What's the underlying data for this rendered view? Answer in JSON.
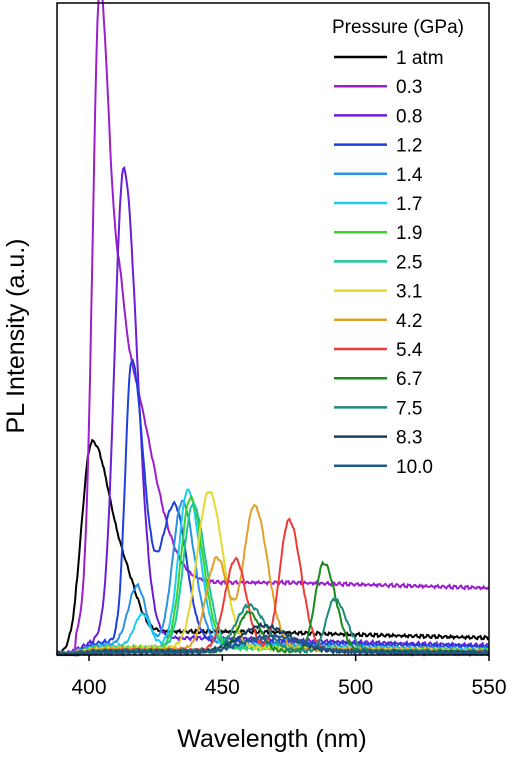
{
  "chart_data": {
    "type": "line",
    "title": "",
    "xlabel": "Wavelength (nm)",
    "ylabel": "PL Intensity (a.u.)",
    "xlim": [
      388,
      550
    ],
    "ylim": [
      0,
      100
    ],
    "xticks": [
      "400",
      "450",
      "500",
      "550"
    ],
    "legend_title": "Pressure (GPa)",
    "legend_position": "top-right",
    "grid": false,
    "series": [
      {
        "name": "1 atm",
        "color": "#000000",
        "peaks": [
          [
            401,
            30,
            3.8,
            7.5
          ],
          [
            415,
            4,
            4,
            4
          ]
        ],
        "tail": [
          3.5,
          460,
          0.012
        ]
      },
      {
        "name": "0.3",
        "color": "#9b1fcc",
        "peaks": [
          [
            404,
            92,
            2.6,
            4.2
          ],
          [
            413,
            34,
            3,
            10
          ]
        ],
        "tail": [
          11,
          476,
          0.0035
        ]
      },
      {
        "name": "0.8",
        "color": "#6a1fd6",
        "peaks": [
          [
            413,
            72,
            3.4,
            5
          ]
        ],
        "tail": [
          2.5,
          450,
          0.02
        ]
      },
      {
        "name": "1.2",
        "color": "#1f3fdd",
        "peaks": [
          [
            416,
            43,
            2.4,
            4.5
          ],
          [
            432,
            21,
            5,
            4.5
          ]
        ],
        "tail": [
          2,
          460,
          0.02
        ]
      },
      {
        "name": "1.4",
        "color": "#2a93e6",
        "peaks": [
          [
            418,
            9,
            3.3,
            3.3
          ],
          [
            435,
            22,
            3.6,
            4.6
          ]
        ],
        "tail": [
          1.5,
          470,
          0.03
        ]
      },
      {
        "name": "1.7",
        "color": "#1ccdf2",
        "peaks": [
          [
            420,
            5,
            3,
            3
          ],
          [
            437,
            24,
            3.4,
            4.6
          ]
        ],
        "tail": [
          1.2,
          470,
          0.03
        ]
      },
      {
        "name": "1.9",
        "color": "#3ad32a",
        "peaks": [
          [
            438,
            23,
            3.5,
            4.7
          ]
        ],
        "tail": [
          1,
          470,
          0.03
        ]
      },
      {
        "name": "2.5",
        "color": "#1fc797",
        "peaks": [
          [
            439,
            22,
            3.6,
            4.8
          ]
        ],
        "tail": [
          1,
          470,
          0.03
        ]
      },
      {
        "name": "3.1",
        "color": "#e5d92f",
        "peaks": [
          [
            445,
            24,
            4.4,
            5.2
          ]
        ],
        "tail": [
          1,
          480,
          0.03
        ]
      },
      {
        "name": "4.2",
        "color": "#e0a02a",
        "peaks": [
          [
            448,
            14,
            4,
            4
          ],
          [
            462,
            22,
            4,
            5
          ]
        ],
        "tail": [
          0.8,
          480,
          0.03
        ]
      },
      {
        "name": "5.4",
        "color": "#f03a3a",
        "peaks": [
          [
            455,
            14,
            4,
            4
          ],
          [
            475,
            20,
            3.5,
            4.5
          ]
        ],
        "tail": [
          0.6,
          490,
          0.03
        ]
      },
      {
        "name": "6.7",
        "color": "#1a8a1a",
        "peaks": [
          [
            460,
            6,
            4,
            4
          ],
          [
            488,
            13.5,
            3.2,
            4.5
          ]
        ],
        "tail": [
          0.5,
          490,
          0.03
        ]
      },
      {
        "name": "7.5",
        "color": "#1f8a7a",
        "peaks": [
          [
            460,
            7,
            5,
            6
          ],
          [
            492,
            8,
            3,
            4.5
          ]
        ],
        "tail": [
          0.5,
          495,
          0.03
        ]
      },
      {
        "name": "8.3",
        "color": "#1a4060",
        "peaks": [
          [
            465,
            4,
            8,
            10
          ]
        ],
        "tail": [
          0.4,
          495,
          0.03
        ]
      },
      {
        "name": "10.0",
        "color": "#1f5a88",
        "peaks": [
          [
            468,
            2.5,
            10,
            12
          ]
        ],
        "tail": [
          0.3,
          500,
          0.03
        ]
      }
    ]
  }
}
